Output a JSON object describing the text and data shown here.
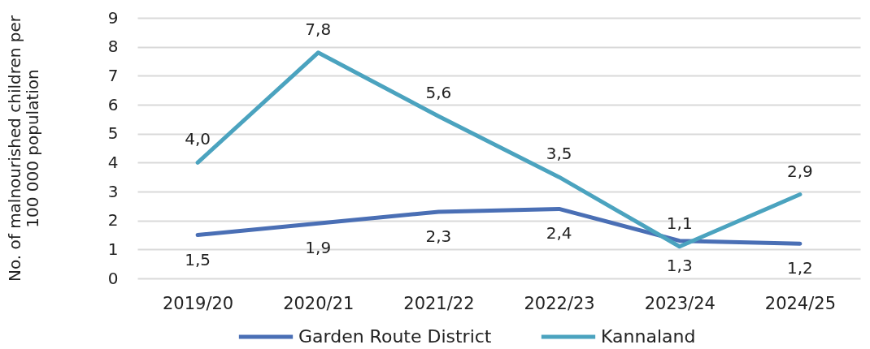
{
  "chart_data": {
    "type": "line",
    "ylabel": "No. of malnourished children per 100 000 population",
    "categories": [
      "2019/20",
      "2020/21",
      "2021/22",
      "2022/23",
      "2023/24",
      "2024/25"
    ],
    "series": [
      {
        "name": "Garden Route District",
        "color": "#4a6fb5",
        "values": [
          1.5,
          1.9,
          2.3,
          2.4,
          1.3,
          1.2
        ],
        "value_labels": [
          "1,5",
          "1,9",
          "2,3",
          "2,4",
          "1,3",
          "1,2"
        ]
      },
      {
        "name": "Kannaland",
        "color": "#4ba3bf",
        "values": [
          4.0,
          7.8,
          5.6,
          3.5,
          1.1,
          2.9
        ],
        "value_labels": [
          "4,0",
          "7,8",
          "5,6",
          "3,5",
          "1,1",
          "2,9"
        ]
      }
    ],
    "ylim": [
      0,
      9
    ],
    "yticks": [
      0,
      1,
      2,
      3,
      4,
      5,
      6,
      7,
      8,
      9
    ],
    "grid": "y",
    "legend": "bottom"
  }
}
